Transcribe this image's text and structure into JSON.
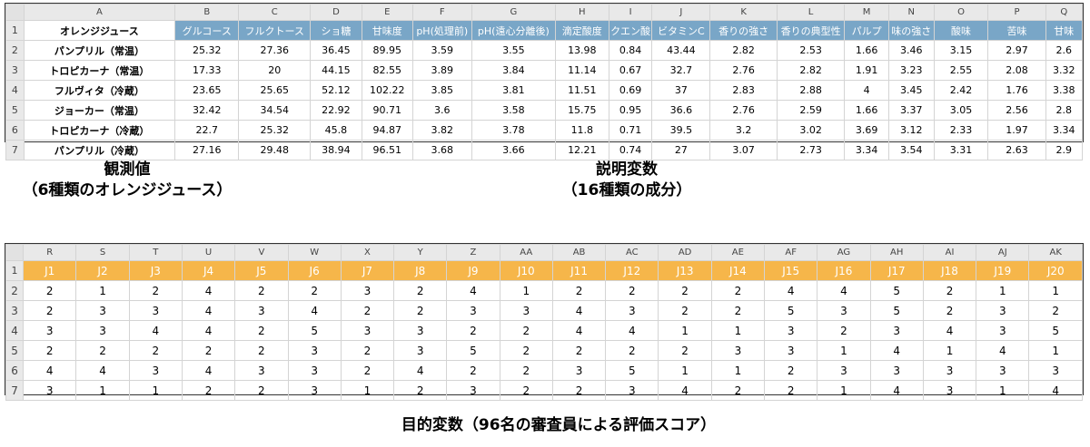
{
  "observations_sheet": {
    "column_letters": [
      "A",
      "B",
      "C",
      "D",
      "E",
      "F",
      "G",
      "H",
      "I",
      "J",
      "K",
      "L",
      "M",
      "N",
      "O",
      "P",
      "Q"
    ],
    "header_first": "オレンジジュース",
    "variable_headers": [
      "グルコース",
      "フルクトース",
      "ショ糖",
      "甘味度",
      "pH(処理前)",
      "pH(遠心分離後)",
      "滴定酸度",
      "クエン酸",
      "ビタミンC",
      "香りの強さ",
      "香りの典型性",
      "パルプ",
      "味の強さ",
      "酸味",
      "苦味",
      "甘味"
    ],
    "rows": [
      {
        "num": "1"
      },
      {
        "num": "2",
        "name": "パンプリル（常温）",
        "values": [
          "25.32",
          "27.36",
          "36.45",
          "89.95",
          "3.59",
          "3.55",
          "13.98",
          "0.84",
          "43.44",
          "2.82",
          "2.53",
          "1.66",
          "3.46",
          "3.15",
          "2.97",
          "2.6"
        ]
      },
      {
        "num": "3",
        "name": "トロピカーナ（常温）",
        "values": [
          "17.33",
          "20",
          "44.15",
          "82.55",
          "3.89",
          "3.84",
          "11.14",
          "0.67",
          "32.7",
          "2.76",
          "2.82",
          "1.91",
          "3.23",
          "2.55",
          "2.08",
          "3.32"
        ]
      },
      {
        "num": "4",
        "name": "フルヴィタ（冷蔵）",
        "values": [
          "23.65",
          "25.65",
          "52.12",
          "102.22",
          "3.85",
          "3.81",
          "11.51",
          "0.69",
          "37",
          "2.83",
          "2.88",
          "4",
          "3.45",
          "2.42",
          "1.76",
          "3.38"
        ]
      },
      {
        "num": "5",
        "name": "ジョーカー（常温）",
        "values": [
          "32.42",
          "34.54",
          "22.92",
          "90.71",
          "3.6",
          "3.58",
          "15.75",
          "0.95",
          "36.6",
          "2.76",
          "2.59",
          "1.66",
          "3.37",
          "3.05",
          "2.56",
          "2.8"
        ]
      },
      {
        "num": "6",
        "name": "トロピカーナ（冷蔵）",
        "values": [
          "22.7",
          "25.32",
          "45.8",
          "94.87",
          "3.82",
          "3.78",
          "11.8",
          "0.71",
          "39.5",
          "3.2",
          "3.02",
          "3.69",
          "3.12",
          "2.33",
          "1.97",
          "3.34"
        ]
      },
      {
        "num": "7",
        "name": "パンプリル（冷蔵）",
        "values": [
          "27.16",
          "29.48",
          "38.94",
          "96.51",
          "3.68",
          "3.66",
          "12.21",
          "0.74",
          "27",
          "3.07",
          "2.73",
          "3.34",
          "3.54",
          "3.31",
          "2.63",
          "2.9"
        ]
      }
    ]
  },
  "captions": {
    "observations": [
      "観測値",
      "（6種類のオレンジジュース）"
    ],
    "explanatory": [
      "説明変数",
      "（16種類の成分）"
    ],
    "target": "目的変数（96名の審査員による評価スコア）"
  },
  "target_sheet": {
    "column_letters": [
      "R",
      "S",
      "T",
      "U",
      "V",
      "W",
      "X",
      "Y",
      "Z",
      "AA",
      "AB",
      "AC",
      "AD",
      "AE",
      "AF",
      "AG",
      "AH",
      "AI",
      "AJ",
      "AK"
    ],
    "judge_headers": [
      "J1",
      "J2",
      "J3",
      "J4",
      "J5",
      "J6",
      "J7",
      "J8",
      "J9",
      "J10",
      "J11",
      "J12",
      "J13",
      "J14",
      "J15",
      "J16",
      "J17",
      "J18",
      "J19",
      "J20"
    ],
    "rows": [
      {
        "num": "1"
      },
      {
        "num": "2",
        "values": [
          "2",
          "1",
          "2",
          "4",
          "2",
          "2",
          "3",
          "2",
          "4",
          "1",
          "2",
          "2",
          "2",
          "2",
          "4",
          "4",
          "5",
          "2",
          "1",
          "1"
        ]
      },
      {
        "num": "3",
        "values": [
          "2",
          "3",
          "3",
          "4",
          "3",
          "4",
          "2",
          "2",
          "3",
          "3",
          "4",
          "3",
          "2",
          "2",
          "5",
          "3",
          "5",
          "2",
          "3",
          "2"
        ]
      },
      {
        "num": "4",
        "values": [
          "3",
          "3",
          "4",
          "4",
          "2",
          "5",
          "3",
          "3",
          "2",
          "2",
          "4",
          "4",
          "1",
          "1",
          "3",
          "2",
          "3",
          "4",
          "3",
          "5"
        ]
      },
      {
        "num": "5",
        "values": [
          "2",
          "2",
          "2",
          "2",
          "2",
          "3",
          "2",
          "3",
          "5",
          "2",
          "2",
          "2",
          "2",
          "3",
          "3",
          "1",
          "4",
          "1",
          "4",
          "1"
        ]
      },
      {
        "num": "6",
        "values": [
          "4",
          "4",
          "3",
          "4",
          "3",
          "3",
          "2",
          "4",
          "2",
          "2",
          "3",
          "5",
          "1",
          "1",
          "2",
          "3",
          "3",
          "3",
          "3",
          "3"
        ]
      },
      {
        "num": "7",
        "values": [
          "3",
          "1",
          "1",
          "2",
          "2",
          "3",
          "1",
          "2",
          "3",
          "2",
          "2",
          "3",
          "4",
          "2",
          "2",
          "1",
          "4",
          "3",
          "1",
          "4"
        ]
      }
    ]
  }
}
